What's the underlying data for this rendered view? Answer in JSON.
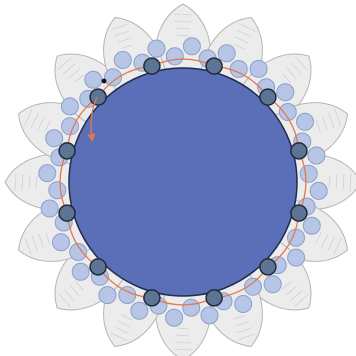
{
  "diagram": {
    "counts": {
      "outer_petals": 16,
      "bead_ring_beads": 48,
      "anchor_beads": 12
    },
    "colors": {
      "background": "#ffffff",
      "core_fill": "#5b6fb9",
      "core_stroke": "#222b4a",
      "petal_fill": "#ececec",
      "petal_stroke": "#b5b5b5",
      "petal_hatch": "#d0d0d0",
      "bead_fill": "#b7c6e6",
      "bead_stroke": "#8d9fc9",
      "anchor_fill": "#5e7494",
      "anchor_stroke": "#1f2a3a",
      "thread_color": "#e4774a",
      "start_dot": "#111111"
    },
    "icons": {
      "thread_end_arrow": "arrow-down-icon",
      "thread_direction_markers": "arrowhead-icon"
    }
  }
}
